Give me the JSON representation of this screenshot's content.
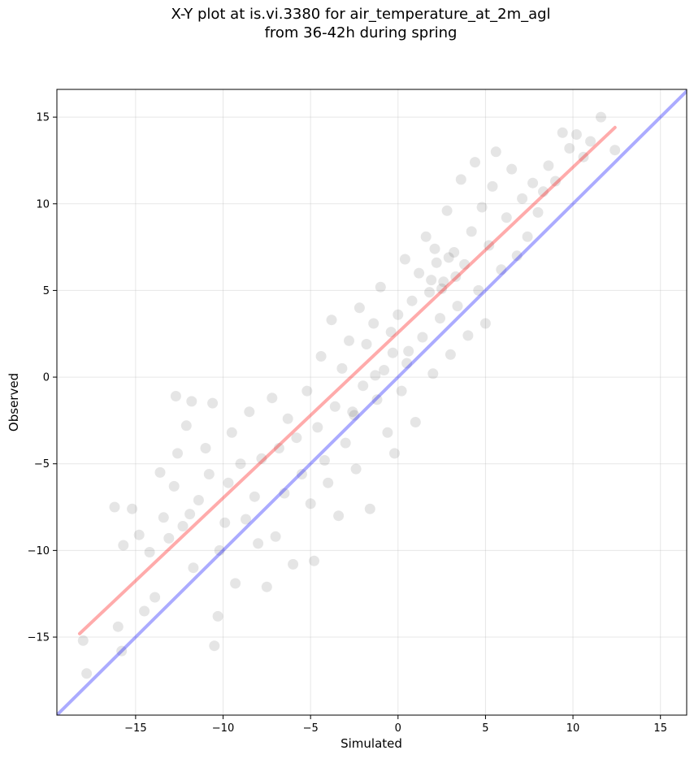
{
  "chart_data": {
    "type": "scatter",
    "title_line1": "X-Y plot at is.vi.3380 for air_temperature_at_2m_agl",
    "title_line2": "from 36-42h during spring",
    "xlabel": "Simulated",
    "ylabel": "Observed",
    "xlim": [
      -19.5,
      16.5
    ],
    "ylim": [
      -19.5,
      16.6
    ],
    "xticks": [
      -15,
      -10,
      -5,
      0,
      5,
      10,
      15
    ],
    "yticks": [
      -15,
      -10,
      -5,
      0,
      5,
      10,
      15
    ],
    "xtick_labels": [
      "−15",
      "−10",
      "−5",
      "0",
      "5",
      "10",
      "15"
    ],
    "ytick_labels": [
      "−15",
      "−10",
      "−5",
      "0",
      "5",
      "10",
      "15"
    ],
    "grid": true,
    "series": [
      {
        "kind": "points",
        "color": "#000000",
        "opacity": 0.1,
        "points": [
          [
            -18,
            -15.2
          ],
          [
            -17.8,
            -17.1
          ],
          [
            -16.2,
            -7.5
          ],
          [
            -16,
            -14.4
          ],
          [
            -15.8,
            -15.8
          ],
          [
            -15.7,
            -9.7
          ],
          [
            -15.2,
            -7.6
          ],
          [
            -14.8,
            -9.1
          ],
          [
            -14.5,
            -13.5
          ],
          [
            -14.2,
            -10.1
          ],
          [
            -13.9,
            -12.7
          ],
          [
            -13.6,
            -5.5
          ],
          [
            -13.4,
            -8.1
          ],
          [
            -13.1,
            -9.3
          ],
          [
            -12.8,
            -6.3
          ],
          [
            -12.7,
            -1.1
          ],
          [
            -12.6,
            -4.4
          ],
          [
            -12.3,
            -8.6
          ],
          [
            -12.1,
            -2.8
          ],
          [
            -11.9,
            -7.9
          ],
          [
            -11.8,
            -1.4
          ],
          [
            -11.7,
            -11.0
          ],
          [
            -11.4,
            -7.1
          ],
          [
            -11.0,
            -4.1
          ],
          [
            -10.8,
            -5.6
          ],
          [
            -10.6,
            -1.5
          ],
          [
            -10.5,
            -15.5
          ],
          [
            -10.3,
            -13.8
          ],
          [
            -10.2,
            -10.0
          ],
          [
            -9.9,
            -8.4
          ],
          [
            -9.7,
            -6.1
          ],
          [
            -9.5,
            -3.2
          ],
          [
            -9.3,
            -11.9
          ],
          [
            -9.0,
            -5.0
          ],
          [
            -8.7,
            -8.2
          ],
          [
            -8.5,
            -2.0
          ],
          [
            -8.2,
            -6.9
          ],
          [
            -8.0,
            -9.6
          ],
          [
            -7.8,
            -4.7
          ],
          [
            -7.5,
            -12.1
          ],
          [
            -7.2,
            -1.2
          ],
          [
            -7.0,
            -9.2
          ],
          [
            -6.8,
            -4.1
          ],
          [
            -6.5,
            -6.7
          ],
          [
            -6.3,
            -2.4
          ],
          [
            -6.0,
            -10.8
          ],
          [
            -5.8,
            -3.5
          ],
          [
            -5.5,
            -5.6
          ],
          [
            -5.2,
            -0.8
          ],
          [
            -5.0,
            -7.3
          ],
          [
            -4.8,
            -10.6
          ],
          [
            -4.6,
            -2.9
          ],
          [
            -4.4,
            1.2
          ],
          [
            -4.2,
            -4.8
          ],
          [
            -4.0,
            -6.1
          ],
          [
            -3.8,
            3.3
          ],
          [
            -3.6,
            -1.7
          ],
          [
            -3.4,
            -8.0
          ],
          [
            -3.2,
            0.5
          ],
          [
            -3.0,
            -3.8
          ],
          [
            -2.8,
            2.1
          ],
          [
            -2.6,
            -2.0
          ],
          [
            -2.4,
            -5.3
          ],
          [
            -2.2,
            4.0
          ],
          [
            -2.0,
            -0.5
          ],
          [
            -1.8,
            1.9
          ],
          [
            -1.6,
            -7.6
          ],
          [
            -1.4,
            3.1
          ],
          [
            -1.2,
            -1.3
          ],
          [
            -1.0,
            5.2
          ],
          [
            -0.8,
            0.4
          ],
          [
            -0.6,
            -3.2
          ],
          [
            -0.4,
            2.6
          ],
          [
            -0.2,
            -4.4
          ],
          [
            0.0,
            3.6
          ],
          [
            0.2,
            -0.8
          ],
          [
            0.4,
            6.8
          ],
          [
            0.6,
            1.5
          ],
          [
            0.8,
            4.4
          ],
          [
            1.0,
            -2.6
          ],
          [
            1.2,
            6.0
          ],
          [
            1.4,
            2.3
          ],
          [
            1.6,
            8.1
          ],
          [
            1.8,
            4.9
          ],
          [
            2.0,
            0.2
          ],
          [
            2.2,
            6.6
          ],
          [
            2.4,
            3.4
          ],
          [
            2.6,
            5.5
          ],
          [
            2.8,
            9.6
          ],
          [
            3.0,
            1.3
          ],
          [
            3.2,
            7.2
          ],
          [
            3.4,
            4.1
          ],
          [
            3.6,
            11.4
          ],
          [
            3.8,
            6.5
          ],
          [
            4.0,
            2.4
          ],
          [
            4.2,
            8.4
          ],
          [
            4.4,
            12.4
          ],
          [
            4.6,
            5.0
          ],
          [
            4.8,
            9.8
          ],
          [
            5.0,
            3.1
          ],
          [
            5.2,
            7.6
          ],
          [
            5.4,
            11.0
          ],
          [
            5.6,
            13.0
          ],
          [
            5.9,
            6.2
          ],
          [
            6.2,
            9.2
          ],
          [
            6.5,
            12.0
          ],
          [
            6.8,
            7.0
          ],
          [
            7.1,
            10.3
          ],
          [
            7.4,
            8.1
          ],
          [
            7.7,
            11.2
          ],
          [
            8.0,
            9.5
          ],
          [
            8.3,
            10.7
          ],
          [
            8.6,
            12.2
          ],
          [
            9.0,
            11.3
          ],
          [
            9.4,
            14.1
          ],
          [
            9.8,
            13.2
          ],
          [
            10.2,
            14.0
          ],
          [
            10.6,
            12.7
          ],
          [
            11.0,
            13.6
          ],
          [
            11.6,
            15.0
          ],
          [
            12.4,
            13.1
          ],
          [
            -2.5,
            -2.2
          ],
          [
            0.5,
            0.8
          ],
          [
            2.5,
            5.1
          ],
          [
            2.9,
            6.9
          ],
          [
            1.9,
            5.6
          ],
          [
            -1.3,
            0.1
          ],
          [
            -0.3,
            1.4
          ],
          [
            3.3,
            5.8
          ],
          [
            2.1,
            7.4
          ]
        ]
      },
      {
        "kind": "line",
        "name": "",
        "color": "#ff0000",
        "opacity": 0.33,
        "from": [
          -18.2,
          -14.8
        ],
        "to": [
          12.4,
          14.4
        ]
      },
      {
        "kind": "line",
        "name": "",
        "color": "#0000ff",
        "opacity": 0.33,
        "from": [
          -19.5,
          -19.5
        ],
        "to": [
          16.5,
          16.5
        ]
      }
    ]
  }
}
